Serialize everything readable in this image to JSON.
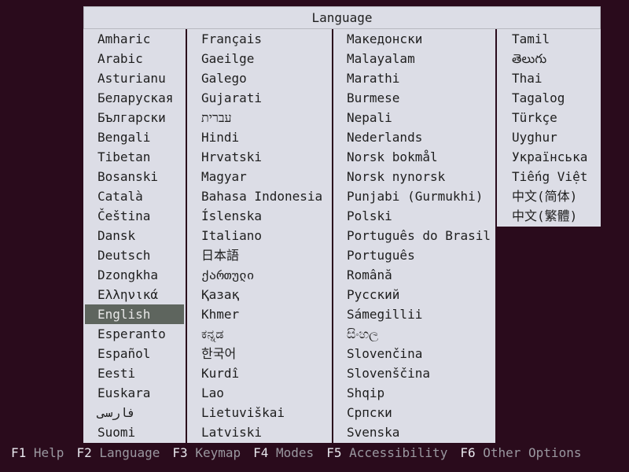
{
  "title": "Language",
  "selected": "English",
  "colors": {
    "background": "#2a0b1c",
    "panel": "#dcdde6",
    "highlight": "#5e655e"
  },
  "columns": [
    [
      "Amharic",
      "Arabic",
      "Asturianu",
      "Беларуская",
      "Български",
      "Bengali",
      "Tibetan",
      "Bosanski",
      "Català",
      "Čeština",
      "Dansk",
      "Deutsch",
      "Dzongkha",
      "Ελληνικά",
      "English",
      "Esperanto",
      "Español",
      "Eesti",
      "Euskara",
      "فارسی",
      "Suomi"
    ],
    [
      "Français",
      "Gaeilge",
      "Galego",
      "Gujarati",
      "עברית",
      "Hindi",
      "Hrvatski",
      "Magyar",
      "Bahasa Indonesia",
      "Íslenska",
      "Italiano",
      "日本語",
      "ქართული",
      "Қазақ",
      "Khmer",
      "ಕನ್ನಡ",
      "한국어",
      "Kurdî",
      "Lao",
      "Lietuviškai",
      "Latviski"
    ],
    [
      "Македонски",
      "Malayalam",
      "Marathi",
      "Burmese",
      "Nepali",
      "Nederlands",
      "Norsk bokmål",
      "Norsk nynorsk",
      "Punjabi (Gurmukhi)",
      "Polski",
      "Português do Brasil",
      "Português",
      "Română",
      "Русский",
      "Sámegillii",
      "සිංහල",
      "Slovenčina",
      "Slovenščina",
      "Shqip",
      "Српски",
      "Svenska"
    ],
    [
      "Tamil",
      "తెలుగు",
      "Thai",
      "Tagalog",
      "Türkçe",
      "Uyghur",
      "Українська",
      "Tiếng Việt",
      "中文(简体)",
      "中文(繁體)"
    ]
  ],
  "footer": [
    {
      "key": "F1",
      "label": "Help"
    },
    {
      "key": "F2",
      "label": "Language"
    },
    {
      "key": "F3",
      "label": "Keymap"
    },
    {
      "key": "F4",
      "label": "Modes"
    },
    {
      "key": "F5",
      "label": "Accessibility"
    },
    {
      "key": "F6",
      "label": "Other Options"
    }
  ]
}
